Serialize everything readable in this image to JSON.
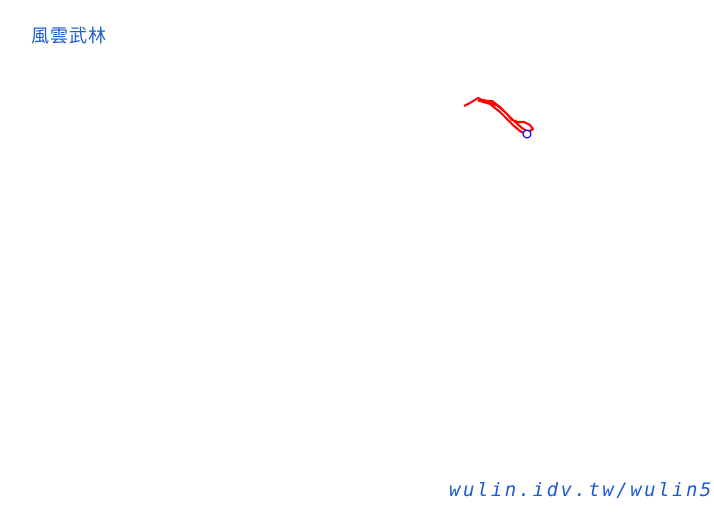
{
  "header": {
    "title": "風雲武林"
  },
  "footer": {
    "url": "wulin.idv.tw/wulin5"
  },
  "map": {
    "track_color": "#ff0000",
    "marker_color": "#0000ff",
    "marker_icon": "circle-marker"
  }
}
